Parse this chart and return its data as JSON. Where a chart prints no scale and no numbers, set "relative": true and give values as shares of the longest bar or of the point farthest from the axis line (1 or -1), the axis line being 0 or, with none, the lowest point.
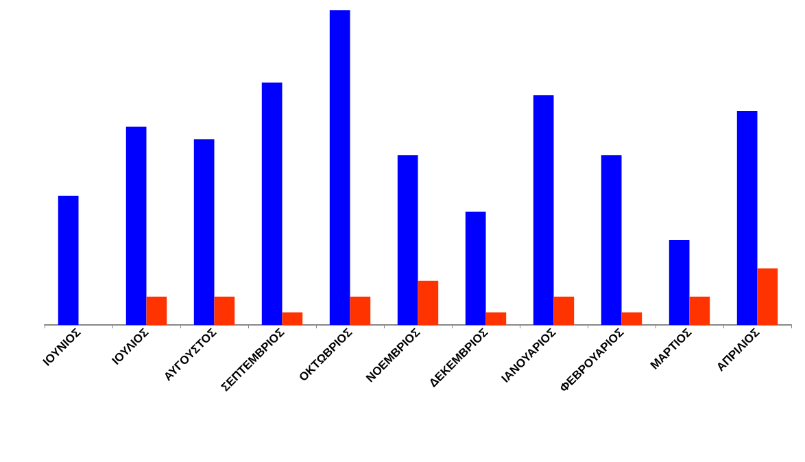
{
  "chart_data": {
    "type": "bar",
    "relative": true,
    "categories": [
      "ΙΟΥΝΙΟΣ",
      "ΙΟΥΛΙΟΣ",
      "ΑΥΓΟΥΣΤΟΣ",
      "ΣΕΠΤΕΜΒΡΙΟΣ",
      "ΟΚΤΩΒΡΙΟΣ",
      "ΝΟΕΜΒΡΙΟΣ",
      "ΔΕΚΕΜΒΡΙΟΣ",
      "ΙΑΝΟΥΑΡΙΟΣ",
      "ΦΕΒΡΟΥΑΡΙΟΣ",
      "ΜΑΡΤΙΟΣ",
      "ΑΠΡΙΛΙΟΣ"
    ],
    "series": [
      {
        "color": "#0000ff",
        "values": [
          0.41,
          0.63,
          0.59,
          0.77,
          1,
          0.54,
          0.36,
          0.73,
          0.54,
          0.27,
          0.68
        ]
      },
      {
        "color": "#ff3300",
        "values": [
          0,
          0.09,
          0.09,
          0.04,
          0.09,
          0.14,
          0.04,
          0.09,
          0.04,
          0.09,
          0.18
        ]
      }
    ]
  }
}
